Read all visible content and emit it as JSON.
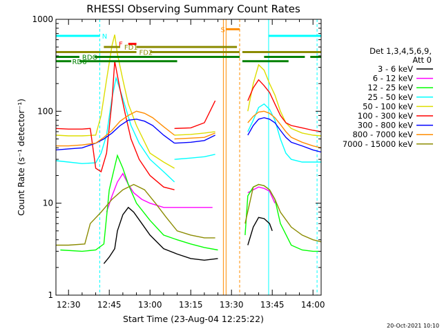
{
  "chart_data": {
    "type": "line",
    "title": "RHESSI Observing Summary Count Rates",
    "xlabel": "Start Time (23-Aug-04 12:25:22)",
    "ylabel": "Count Rate (s⁻¹ detector⁻¹)",
    "y_scale": "log",
    "ylim": [
      1,
      1000
    ],
    "y_ticks": [
      {
        "value": 1,
        "label": "1"
      },
      {
        "value": 10,
        "label": "10"
      },
      {
        "value": 100,
        "label": "100"
      },
      {
        "value": 1000,
        "label": "1000"
      }
    ],
    "xlim": [
      "12:25:22",
      "14:03:00"
    ],
    "x_ticks": [
      "12:30",
      "12:45",
      "13:00",
      "13:15",
      "13:30",
      "13:45",
      "14:00"
    ],
    "x_tick_values": [
      "12:30",
      "12:45",
      "13:00",
      "13:15",
      "13:30",
      "13:45",
      "14:00"
    ],
    "legend": {
      "placement": "right",
      "header": [
        "Det 1,3,4,5,6,9,",
        "Att 0"
      ],
      "entries": [
        {
          "label": "3 - 6 keV",
          "color": "#000000"
        },
        {
          "label": "6 - 12 keV",
          "color": "#ff00ff"
        },
        {
          "label": "12 - 25 keV",
          "color": "#00ff00"
        },
        {
          "label": "25 - 50 keV",
          "color": "#00ffff"
        },
        {
          "label": "50 - 100 keV",
          "color": "#dddd00"
        },
        {
          "label": "100 - 300 keV",
          "color": "#ff0000"
        },
        {
          "label": "300 - 800 keV",
          "color": "#0000ff"
        },
        {
          "label": "800 - 7000 keV",
          "color": "#ff8c00"
        },
        {
          "label": "7000 - 15000 keV",
          "color": "#8b8b00"
        }
      ]
    },
    "series": [
      {
        "name": "3 - 6 keV",
        "color": "#000000",
        "segments": [
          {
            "x": [
              "12:43",
              "12:45",
              "12:47",
              "12:48",
              "12:50",
              "12:52",
              "12:54",
              "12:57",
              "13:00",
              "13:05",
              "13:10",
              "13:15",
              "13:20",
              "13:25"
            ],
            "y": [
              2.2,
              2.6,
              3.2,
              5.0,
              7.5,
              9.0,
              8.0,
              6.0,
              4.5,
              3.2,
              2.8,
              2.5,
              2.4,
              2.5
            ]
          },
          {
            "x": [
              "13:36",
              "13:38",
              "13:40",
              "13:42",
              "13:44",
              "13:45"
            ],
            "y": [
              3.5,
              5.5,
              7.0,
              6.8,
              6.0,
              5.0
            ]
          }
        ]
      },
      {
        "name": "6 - 12 keV",
        "color": "#ff00ff",
        "segments": [
          {
            "x": [
              "12:44",
              "12:46",
              "12:48",
              "12:50",
              "12:52",
              "12:54",
              "12:57",
              "13:00",
              "13:05",
              "13:10",
              "13:15",
              "13:20",
              "13:23"
            ],
            "y": [
              8.0,
              12,
              17,
              21,
              16,
              13,
              11,
              10,
              9,
              9,
              9,
              9,
              9
            ]
          },
          {
            "x": [
              "13:36",
              "13:38",
              "13:40",
              "13:42",
              "13:44",
              "13:46"
            ],
            "y": [
              13,
              14,
              15,
              14.5,
              13.5,
              10
            ]
          }
        ]
      },
      {
        "name": "12 - 25 keV",
        "color": "#00ff00",
        "segments": [
          {
            "x": [
              "12:27",
              "12:35",
              "12:40",
              "12:43",
              "12:45",
              "12:47",
              "12:48",
              "12:50",
              "12:52",
              "12:55",
              "13:00",
              "13:05",
              "13:10",
              "13:15",
              "13:20",
              "13:25"
            ],
            "y": [
              3.1,
              3.0,
              3.1,
              3.6,
              14,
              25,
              33,
              24,
              16,
              10,
              6.5,
              4.5,
              4.0,
              3.6,
              3.3,
              3.1
            ]
          },
          {
            "x": [
              "13:35",
              "13:36",
              "13:38",
              "13:40",
              "13:42",
              "13:44",
              "13:46",
              "13:48",
              "13:52",
              "13:56",
              "14:00",
              "14:02"
            ],
            "y": [
              4.5,
              12,
              15,
              16,
              15.5,
              14,
              11,
              6,
              3.5,
              3.1,
              3.0,
              3.0
            ]
          }
        ]
      },
      {
        "name": "25 - 50 keV",
        "color": "#00ffff",
        "segments": [
          {
            "x": [
              "12:25:22",
              "12:30",
              "12:35",
              "12:40",
              "12:42",
              "12:44",
              "12:46",
              "12:47:30",
              "12:49",
              "12:51",
              "12:53",
              "12:56",
              "13:00",
              "13:05",
              "13:09"
            ],
            "y": [
              29,
              28,
              27,
              27.5,
              35,
              55,
              140,
              230,
              170,
              110,
              70,
              45,
              30,
              22,
              17
            ]
          },
          {
            "x": [
              "13:09",
              "13:15",
              "13:20",
              "13:24"
            ],
            "y": [
              30,
              31,
              32,
              34
            ]
          },
          {
            "x": [
              "13:36",
              "13:38",
              "13:40",
              "13:42",
              "13:44",
              "13:46",
              "13:48",
              "13:50",
              "13:52",
              "13:56",
              "14:00",
              "14:03"
            ],
            "y": [
              60,
              80,
              110,
              120,
              105,
              80,
              50,
              35,
              30,
              28,
              28,
              28
            ]
          }
        ]
      },
      {
        "name": "50 - 100 keV",
        "color": "#dddd00",
        "segments": [
          {
            "x": [
              "12:25:22",
              "12:30",
              "12:35",
              "12:40",
              "12:42",
              "12:44",
              "12:46",
              "12:47",
              "12:48",
              "12:50",
              "12:52",
              "12:55",
              "13:00",
              "13:05",
              "13:09"
            ],
            "y": [
              55,
              54,
              54,
              55,
              90,
              220,
              520,
              680,
              420,
              220,
              120,
              70,
              35,
              28,
              24
            ]
          },
          {
            "x": [
              "13:09",
              "13:15",
              "13:20",
              "13:24"
            ],
            "y": [
              55,
              56,
              58,
              60
            ]
          },
          {
            "x": [
              "13:36",
              "13:38",
              "13:40",
              "13:42",
              "13:44",
              "13:46",
              "13:48",
              "13:50",
              "13:52",
              "13:56",
              "14:00",
              "14:03"
            ],
            "y": [
              100,
              200,
              320,
              280,
              200,
              150,
              100,
              75,
              65,
              58,
              55,
              54
            ]
          }
        ]
      },
      {
        "name": "100 - 300 keV",
        "color": "#ff0000",
        "segments": [
          {
            "x": [
              "12:25:22",
              "12:30",
              "12:35",
              "12:38",
              "12:40",
              "12:42",
              "12:44",
              "12:46",
              "12:47",
              "12:49",
              "12:51",
              "12:53",
              "12:56",
              "13:00",
              "13:05",
              "13:09"
            ],
            "y": [
              65,
              64,
              64,
              65,
              24,
              22,
              35,
              130,
              350,
              170,
              90,
              50,
              30,
              20,
              15,
              14
            ]
          },
          {
            "x": [
              "13:09",
              "13:15",
              "13:20",
              "13:24"
            ],
            "y": [
              65,
              66,
              75,
              130
            ]
          },
          {
            "x": [
              "13:36",
              "13:38",
              "13:40",
              "13:42",
              "13:44",
              "13:46",
              "13:48",
              "13:50",
              "13:52",
              "13:56",
              "14:00",
              "14:03"
            ],
            "y": [
              130,
              180,
              220,
              190,
              160,
              120,
              90,
              75,
              70,
              66,
              62,
              60
            ]
          }
        ]
      },
      {
        "name": "300 - 800 keV",
        "color": "#0000ff",
        "segments": [
          {
            "x": [
              "12:25:22",
              "12:30",
              "12:35",
              "12:40",
              "12:43",
              "12:46",
              "12:49",
              "12:52",
              "12:55",
              "12:58",
              "13:01",
              "13:05",
              "13:09"
            ],
            "y": [
              38,
              39,
              40,
              45,
              50,
              58,
              70,
              80,
              82,
              78,
              70,
              55,
              45
            ]
          },
          {
            "x": [
              "13:09",
              "13:15",
              "13:20",
              "13:24"
            ],
            "y": [
              45,
              46,
              48,
              55
            ]
          },
          {
            "x": [
              "13:36",
              "13:38",
              "13:40",
              "13:42",
              "13:44",
              "13:46",
              "13:48",
              "13:50",
              "13:52",
              "13:56",
              "14:00",
              "14:03"
            ],
            "y": [
              55,
              70,
              82,
              85,
              82,
              75,
              62,
              52,
              46,
              42,
              38,
              36
            ]
          }
        ]
      },
      {
        "name": "800 - 7000 keV",
        "color": "#ff8c00",
        "segments": [
          {
            "x": [
              "12:25:22",
              "12:30",
              "12:35",
              "12:40",
              "12:43",
              "12:46",
              "12:49",
              "12:52",
              "12:55",
              "12:58",
              "13:01",
              "13:05",
              "13:09"
            ],
            "y": [
              42,
              42,
              43,
              45,
              52,
              62,
              78,
              90,
              100,
              95,
              85,
              68,
              55
            ]
          },
          {
            "x": [
              "13:09",
              "13:15",
              "13:20",
              "13:24"
            ],
            "y": [
              50,
              51,
              52,
              58
            ]
          },
          {
            "x": [
              "13:36",
              "13:38",
              "13:40",
              "13:42",
              "13:44",
              "13:46",
              "13:48",
              "13:50",
              "13:52",
              "13:56",
              "14:00",
              "14:03"
            ],
            "y": [
              75,
              88,
              98,
              100,
              95,
              85,
              72,
              60,
              52,
              46,
              42,
              40
            ]
          }
        ]
      },
      {
        "name": "7000 - 15000 keV",
        "color": "#8b8b00",
        "segments": [
          {
            "x": [
              "12:25:22",
              "12:30",
              "12:36",
              "12:38",
              "12:42",
              "12:46",
              "12:50",
              "12:54",
              "12:58",
              "13:02",
              "13:06",
              "13:10",
              "13:15",
              "13:20",
              "13:24"
            ],
            "y": [
              3.5,
              3.5,
              3.6,
              6,
              8,
              11,
              14,
              16,
              14,
              10,
              7,
              5,
              4.5,
              4.2,
              4.2
            ]
          },
          {
            "x": [
              "13:35",
              "13:38",
              "13:40",
              "13:42",
              "13:44",
              "13:46",
              "13:48",
              "13:52",
              "13:56",
              "14:00",
              "14:03"
            ],
            "y": [
              6,
              15,
              16,
              15.5,
              14,
              11,
              8,
              5.5,
              4.5,
              4.0,
              3.8
            ]
          }
        ]
      }
    ],
    "vertical_markers": [
      {
        "x": "12:41:30",
        "color": "#00ffff",
        "style": "dashed"
      },
      {
        "x": "13:27",
        "color": "#ff8c00",
        "style": "solid"
      },
      {
        "x": "13:28",
        "color": "#ff8c00",
        "style": "solid"
      },
      {
        "x": "13:33",
        "color": "#ff8c00",
        "style": "dashed"
      },
      {
        "x": "13:43:40",
        "color": "#00ffff",
        "style": "solid"
      },
      {
        "x": "14:01:30",
        "color": "#00ffff",
        "style": "dashed"
      }
    ],
    "flag_bars": [
      {
        "label": "N",
        "color": "#00ffff",
        "y": 660,
        "segments": [
          [
            "12:25:22",
            "12:41:30"
          ],
          [
            "13:43:40",
            "14:03:00"
          ]
        ],
        "label_x": "12:42:20"
      },
      {
        "label": "S",
        "color": "#ff8c00",
        "y": 780,
        "segments": [
          [
            "13:28",
            "13:33"
          ]
        ],
        "label_x": "13:26"
      },
      {
        "label": "F",
        "color": "#ff0000",
        "y": 540,
        "segments": [
          [
            "12:52",
            "12:55"
          ]
        ],
        "label_x": "12:48:30"
      },
      {
        "label": "FD1",
        "color": "#8b8b00",
        "y": 500,
        "segments": [
          [
            "12:43",
            "12:49"
          ],
          [
            "12:55",
            "13:32"
          ]
        ],
        "label_x": "12:50:30"
      },
      {
        "label": "FD2",
        "color": "#8b8b00",
        "y": 440,
        "segments": [
          [
            "12:25:22",
            "12:55"
          ],
          [
            "13:00",
            "13:33"
          ],
          [
            "13:34",
            "14:03:00"
          ]
        ],
        "label_x": "12:56"
      },
      {
        "label": "RDO",
        "color": "#008000",
        "y": 390,
        "segments": [
          [
            "12:25:22",
            "12:34"
          ],
          [
            "12:39:30",
            "13:33"
          ],
          [
            "13:42",
            "13:57"
          ],
          [
            "13:59",
            "14:03:00"
          ]
        ],
        "label_x": "12:35"
      },
      {
        "label": "RD6",
        "color": "#008000",
        "y": 350,
        "segments": [
          [
            "12:25:22",
            "12:31"
          ],
          [
            "12:34",
            "13:10"
          ],
          [
            "13:34",
            "13:51"
          ]
        ],
        "label_x": "12:31:20"
      }
    ],
    "timestamp": "20-Oct-2021 10:10",
    "grid": false
  }
}
